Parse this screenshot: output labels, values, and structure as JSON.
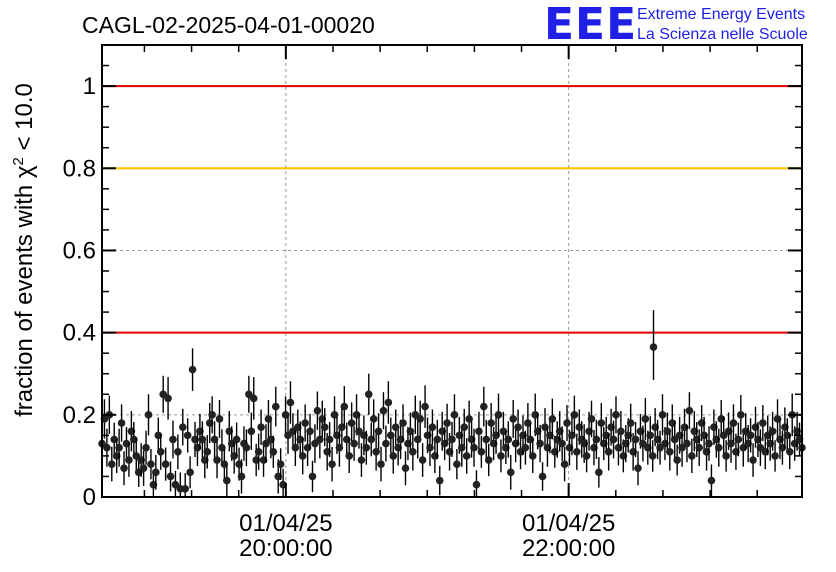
{
  "chart_data": {
    "type": "scatter",
    "title": "CAGL-02-2025-04-01-00020",
    "ylabel": "fraction of events with χ² < 10.0",
    "ylabel_parts": {
      "before": "fraction of events with ",
      "symbol": "χ",
      "sup": "2",
      "after": " < 10.0"
    },
    "ylim": [
      0,
      1.1
    ],
    "xlim": [
      "01/04/25 18:42:00",
      "01/04/25 23:39:00"
    ],
    "grid": true,
    "y_ticks": [
      {
        "value": 0,
        "label": "0"
      },
      {
        "value": 0.2,
        "label": "0.2"
      },
      {
        "value": 0.4,
        "label": "0.4"
      },
      {
        "value": 0.6,
        "label": "0.6"
      },
      {
        "value": 0.8,
        "label": "0.8"
      },
      {
        "value": 1,
        "label": "1"
      }
    ],
    "x_ticks": [
      {
        "time": "01/04/25 20:00:00",
        "date_label": "01/04/25",
        "time_label": "20:00:00"
      },
      {
        "time": "01/04/25 22:00:00",
        "date_label": "01/04/25",
        "time_label": "22:00:00"
      }
    ],
    "reference_lines": [
      {
        "y": 1.0,
        "color": "#e00000"
      },
      {
        "y": 0.8,
        "color": "#ffc000"
      },
      {
        "y": 0.4,
        "color": "#e00000"
      }
    ],
    "series": [
      {
        "marker_color": "#222222",
        "typical_error": 0.045,
        "start_time": "01/04/25 18:42:00",
        "end_time": "01/04/25 23:39:00",
        "y": [
          0.13,
          0.19,
          0.12,
          0.2,
          0.08,
          0.14,
          0.1,
          0.12,
          0.18,
          0.07,
          0.13,
          0.09,
          0.16,
          0.14,
          0.1,
          0.06,
          0.09,
          0.07,
          0.12,
          0.2,
          0.08,
          0.03,
          0.06,
          0.15,
          0.11,
          0.25,
          0.08,
          0.24,
          0.05,
          0.14,
          0.03,
          0.11,
          0.02,
          0.17,
          0.02,
          0.15,
          0.06,
          0.31,
          0.14,
          0.12,
          0.16,
          0.14,
          0.09,
          0.11,
          0.18,
          0.2,
          0.14,
          0.09,
          0.19,
          0.12,
          0.08,
          0.04,
          0.16,
          0.13,
          0.1,
          0.14,
          0.08,
          0.05,
          0.13,
          0.12,
          0.25,
          0.16,
          0.24,
          0.09,
          0.11,
          0.17,
          0.09,
          0.13,
          0.19,
          0.14,
          0.11,
          0.22,
          0.05,
          0.08,
          0.03,
          0.2,
          0.15,
          0.23,
          0.16,
          0.12,
          0.17,
          0.14,
          0.1,
          0.18,
          0.12,
          0.16,
          0.05,
          0.13,
          0.21,
          0.14,
          0.19,
          0.17,
          0.11,
          0.14,
          0.08,
          0.2,
          0.15,
          0.12,
          0.17,
          0.22,
          0.14,
          0.1,
          0.18,
          0.13,
          0.2,
          0.16,
          0.09,
          0.15,
          0.12,
          0.25,
          0.14,
          0.19,
          0.11,
          0.16,
          0.08,
          0.21,
          0.13,
          0.23,
          0.15,
          0.1,
          0.17,
          0.12,
          0.14,
          0.18,
          0.07,
          0.13,
          0.16,
          0.11,
          0.2,
          0.14,
          0.19,
          0.09,
          0.22,
          0.15,
          0.12,
          0.17,
          0.1,
          0.14,
          0.04,
          0.16,
          0.13,
          0.18,
          0.11,
          0.14,
          0.2,
          0.08,
          0.15,
          0.12,
          0.17,
          0.1,
          0.19,
          0.14,
          0.12,
          0.03,
          0.16,
          0.11,
          0.22,
          0.14,
          0.09,
          0.18,
          0.13,
          0.15,
          0.2,
          0.1,
          0.16,
          0.12,
          0.14,
          0.06,
          0.19,
          0.13,
          0.17,
          0.11,
          0.15,
          0.12,
          0.18,
          0.14,
          0.1,
          0.2,
          0.16,
          0.13,
          0.05,
          0.17,
          0.12,
          0.15,
          0.19,
          0.11,
          0.14,
          0.16,
          0.13,
          0.08,
          0.18,
          0.12,
          0.15,
          0.2,
          0.11,
          0.17,
          0.14,
          0.13,
          0.1,
          0.16,
          0.19,
          0.12,
          0.14,
          0.06,
          0.18,
          0.13,
          0.15,
          0.11,
          0.17,
          0.14,
          0.2,
          0.12,
          0.16,
          0.1,
          0.13,
          0.15,
          0.18,
          0.11,
          0.14,
          0.07,
          0.16,
          0.13,
          0.19,
          0.12,
          0.15,
          0.1,
          0.17,
          0.14,
          0.12,
          0.2,
          0.13,
          0.16,
          0.11,
          0.18,
          0.14,
          0.09,
          0.15,
          0.12,
          0.17,
          0.13,
          0.21,
          0.1,
          0.16,
          0.14,
          0.12,
          0.18,
          0.15,
          0.11,
          0.13,
          0.04,
          0.17,
          0.14,
          0.12,
          0.19,
          0.15,
          0.1,
          0.16,
          0.13,
          0.18,
          0.11,
          0.14,
          0.2,
          0.12,
          0.16,
          0.13,
          0.15,
          0.09,
          0.17,
          0.14,
          0.12,
          0.18,
          0.11,
          0.15,
          0.13,
          0.16,
          0.1,
          0.19,
          0.14,
          0.12,
          0.17,
          0.15,
          0.11,
          0.2,
          0.13,
          0.16,
          0.14,
          0.12
        ]
      }
    ],
    "highlight_point": {
      "time": "01/04/25 22:36:00",
      "y": 0.365
    }
  },
  "logo": {
    "mark": "EEE",
    "line1": "Extreme Energy Events",
    "line2": "La Scienza nelle Scuole",
    "color": "#1f1fe6"
  }
}
